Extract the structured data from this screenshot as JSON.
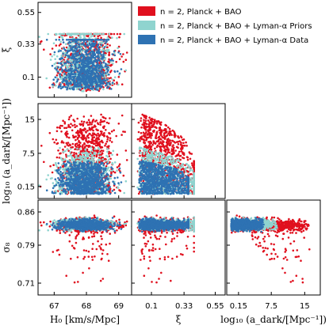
{
  "chart_data": {
    "type": "scatter",
    "title": "",
    "colors": {
      "red": "#e0101e",
      "cyan": "#8fd4cf",
      "blue": "#2e72b3"
    },
    "legend": {
      "placement": "top-right",
      "entries": [
        {
          "color_key": "red",
          "label": "n = 2, Planck + BAO"
        },
        {
          "color_key": "cyan",
          "label": "n = 2, Planck + BAO + Lyman-α Priors"
        },
        {
          "color_key": "blue",
          "label": "n = 2, Planck + BAO + Lyman-α Data"
        }
      ]
    },
    "axes": {
      "H0": {
        "label": "H₀ [km/s/Mpc]",
        "range": [
          66.5,
          69.4
        ],
        "ticks": [
          67,
          68,
          69
        ],
        "tick_labels": [
          "67",
          "68",
          "69"
        ]
      },
      "xi": {
        "label": "ξ",
        "range": [
          -0.04,
          0.62
        ],
        "ticks": [
          0.1,
          0.33,
          0.55
        ],
        "tick_labels": [
          "0.1",
          "0.33",
          "0.55"
        ]
      },
      "loga": {
        "label": "log₁₀ (a_dark/[Mpc⁻¹])",
        "range": [
          -2.5,
          18.5
        ],
        "ticks": [
          0.15,
          7.5,
          15
        ],
        "tick_labels": [
          "0.15",
          "7.5",
          "15"
        ]
      },
      "sigma8": {
        "label": "σ₈",
        "range": [
          0.685,
          0.885
        ],
        "ticks": [
          0.71,
          0.79,
          0.86
        ],
        "tick_labels": [
          "0.71",
          "0.79",
          "0.86"
        ]
      }
    },
    "panels": [
      {
        "x": "H0",
        "y": "xi",
        "row": 0,
        "col": 0
      },
      {
        "x": "H0",
        "y": "loga",
        "row": 1,
        "col": 0
      },
      {
        "x": "xi",
        "y": "loga",
        "row": 1,
        "col": 1
      },
      {
        "x": "H0",
        "y": "sigma8",
        "row": 2,
        "col": 0
      },
      {
        "x": "xi",
        "y": "sigma8",
        "row": 2,
        "col": 1
      },
      {
        "x": "loga",
        "y": "sigma8",
        "row": 2,
        "col": 2
      }
    ],
    "samples": {
      "red": {
        "H0": {
          "mean": 68.0,
          "sd": 0.42
        },
        "xi_max": 0.4,
        "loga_max": 17,
        "sigma8": {
          "mean": 0.832,
          "sd": 0.006
        },
        "sigma8_low_tail_to": 0.71
      },
      "cyan": {
        "H0": {
          "mean": 67.9,
          "sd": 0.4
        },
        "xi_max": 0.4,
        "loga_max": 9,
        "sigma8": {
          "mean": 0.834,
          "sd": 0.005
        }
      },
      "blue": {
        "H0": {
          "mean": 67.95,
          "sd": 0.38
        },
        "xi_max": 0.36,
        "loga_max": 6,
        "sigma8": {
          "mean": 0.833,
          "sd": 0.005
        }
      }
    }
  }
}
